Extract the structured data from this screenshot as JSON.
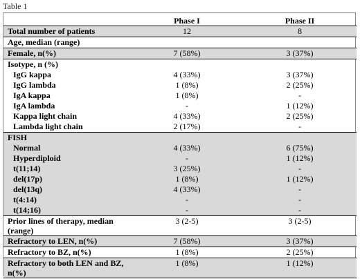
{
  "caption": "Table 1",
  "columns": [
    "",
    "Phase I",
    "Phase II"
  ],
  "rows": [
    {
      "label": "Total number  of patients",
      "p1": "12",
      "p2": "8",
      "style": "shade bold line-top line-bottom"
    },
    {
      "label": "Age, median  (range)",
      "p1": "",
      "p2": "",
      "style": "bold"
    },
    {
      "label": "Female, n(%)",
      "p1": "7 (58%)",
      "p2": "3 (37%)",
      "style": "shade bold line-top line-bottom"
    },
    {
      "label": "Isotype, n (%)",
      "p1": "",
      "p2": "",
      "style": "bold"
    },
    {
      "label": "IgG kappa",
      "p1": "4 (33%)",
      "p2": "3 (37%)",
      "style": "indent"
    },
    {
      "label": "IgG lambda",
      "p1": "1 (8%)",
      "p2": "2 (25%)",
      "style": "indent"
    },
    {
      "label": "IgA kappa",
      "p1": "1 (8%)",
      "p2": "-",
      "style": "indent"
    },
    {
      "label": "IgA lambda",
      "p1": "-",
      "p2": "1 (12%)",
      "style": "indent"
    },
    {
      "label": "Kappa light chain",
      "p1": "4 (33%)",
      "p2": "2 (25%)",
      "style": "indent"
    },
    {
      "label": "Lambda  light chain",
      "p1": "2 (17%)",
      "p2": "-",
      "style": "indent"
    },
    {
      "label": "FISH",
      "p1": "",
      "p2": "",
      "style": "shade bold line-top"
    },
    {
      "label": "Normal",
      "p1": "4 (33%)",
      "p2": "6 (75%)",
      "style": "shade indent"
    },
    {
      "label": "Hyperdiploid",
      "p1": "-",
      "p2": "1 (12%)",
      "style": "shade indent"
    },
    {
      "label": "t(11;14)",
      "p1": "3 (25%)",
      "p2": "-",
      "style": "shade indent"
    },
    {
      "label": "del(17p)",
      "p1": "1 (8%)",
      "p2": "1 (12%)",
      "style": "shade indent"
    },
    {
      "label": "del(13q)",
      "p1": "4 (33%)",
      "p2": "-",
      "style": "shade indent"
    },
    {
      "label": "t(4:14)",
      "p1": "-",
      "p2": "-",
      "style": "shade indent"
    },
    {
      "label": "t(14;16)",
      "p1": "-",
      "p2": "-",
      "style": "shade indent line-bottom"
    },
    {
      "label": "Prior  lines of therapy, median (range)",
      "p1": "3 (2-5)",
      "p2": "3 (2-5)",
      "style": "bold wrap"
    },
    {
      "label": "Refractory to LEN, n(%)",
      "p1": "7 (58%)",
      "p2": "3 (37%)",
      "style": "shade bold line-top line-bottom"
    },
    {
      "label": "Refractory to BZ, n(%)",
      "p1": "1 (8%)",
      "p2": "2 (25%)",
      "style": "bold"
    },
    {
      "label": "Refractory to both LEN and BZ, n(%)",
      "p1": "1 (8%)",
      "p2": "1 (12%)",
      "style": "shade bold wrap line-top line-bottom"
    }
  ]
}
